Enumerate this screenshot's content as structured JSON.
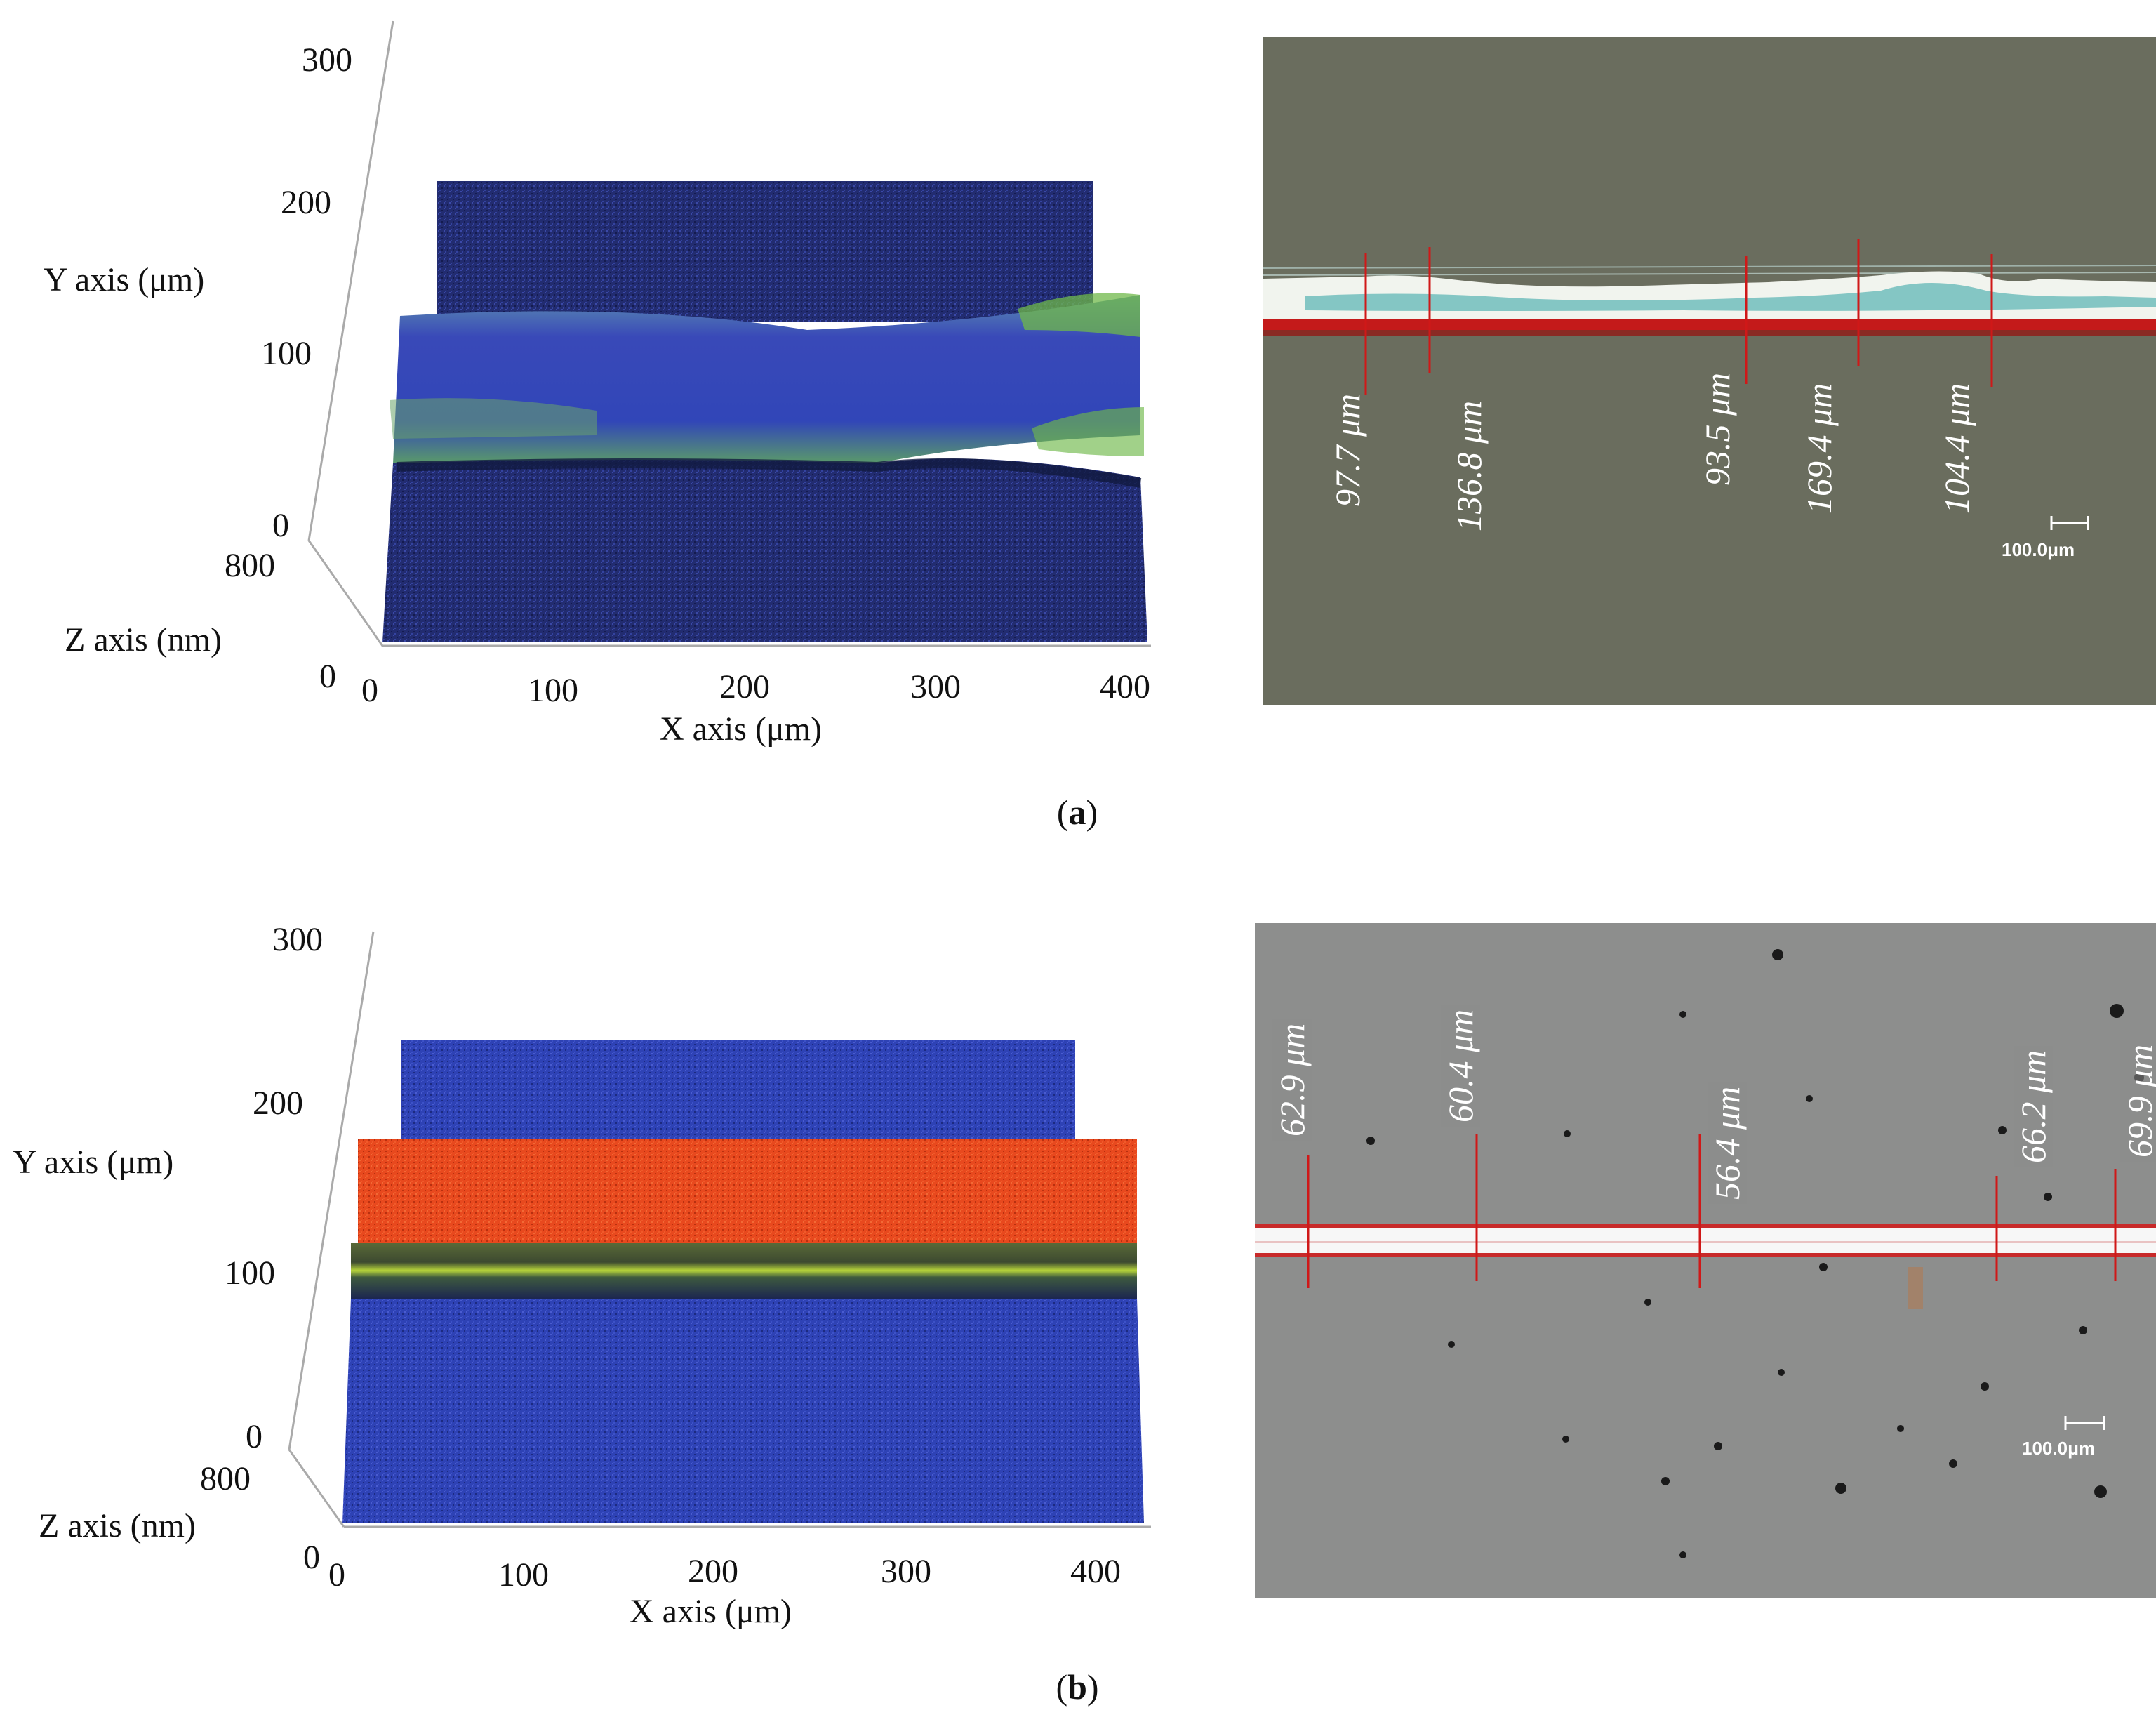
{
  "panels": [
    {
      "id": "a",
      "caption_letter": "a",
      "plot": {
        "y_ticks": [
          "300",
          "200",
          "100",
          "0"
        ],
        "z_ticks": [
          "800",
          "0"
        ],
        "x_ticks": [
          "0",
          "100",
          "200",
          "300",
          "400"
        ],
        "y_label": "Y axis (μm)",
        "z_label": "Z axis (nm)",
        "x_label": "X axis (μm)"
      },
      "micrograph": {
        "measurements": [
          "97.7 μm",
          "136.8 μm",
          "93.5 μm",
          "169.4 μm",
          "104.4 μm"
        ],
        "scale_bar": "100.0μm"
      }
    },
    {
      "id": "b",
      "caption_letter": "b",
      "plot": {
        "y_ticks": [
          "300",
          "200",
          "100",
          "0"
        ],
        "z_ticks": [
          "800",
          "0"
        ],
        "x_ticks": [
          "0",
          "100",
          "200",
          "300",
          "400"
        ],
        "y_label": "Y axis (μm)",
        "z_label": "Z axis (nm)",
        "x_label": "X axis (μm)"
      },
      "micrograph": {
        "measurements": [
          "62.9 μm",
          "60.4 μm",
          "56.4 μm",
          "66.2 μm",
          "69.9 μm"
        ],
        "scale_bar": "100.0μm"
      }
    }
  ],
  "colors": {
    "surface_a_base": "#1f2a6e",
    "surface_a_ridge": "#3a4fc0",
    "surface_a_highlight": "#6fb84a",
    "surface_b_base": "#2c3fb0",
    "surface_b_top": "#e8491e",
    "surface_b_stripe": "#b6d43a",
    "micrograph_a_bg": "#6b6e5f",
    "micrograph_b_bg": "#8f9090",
    "measure_line": "#d01818"
  }
}
